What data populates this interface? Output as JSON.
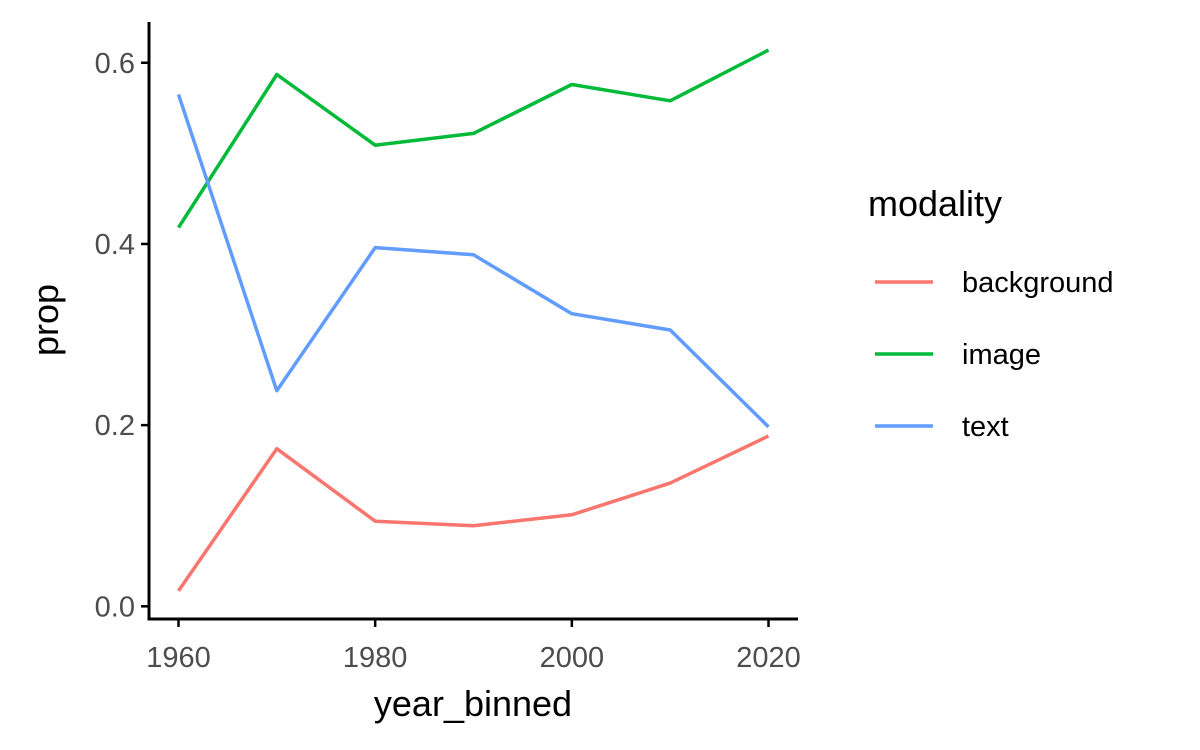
{
  "chart_data": {
    "type": "line",
    "xlabel": "year_binned",
    "ylabel": "prop",
    "x": [
      1960,
      1970,
      1980,
      1990,
      2000,
      2010,
      2020
    ],
    "x_ticks": [
      1960,
      1980,
      2000,
      2020
    ],
    "x_tick_labels": [
      "1960",
      "1980",
      "2000",
      "2020"
    ],
    "y_ticks": [
      0.0,
      0.2,
      0.4,
      0.6
    ],
    "y_tick_labels": [
      "0.0",
      "0.2",
      "0.4",
      "0.6"
    ],
    "xlim": [
      1957,
      2023
    ],
    "ylim": [
      -0.014,
      0.645
    ],
    "grid": false,
    "legend": {
      "title": "modality",
      "placement": "right"
    },
    "series": [
      {
        "name": "background",
        "color": "#F8766D",
        "values": [
          0.017,
          0.174,
          0.094,
          0.089,
          0.101,
          0.136,
          0.188
        ]
      },
      {
        "name": "image",
        "color": "#00BA38",
        "values": [
          0.418,
          0.587,
          0.509,
          0.522,
          0.576,
          0.558,
          0.614
        ]
      },
      {
        "name": "text",
        "color": "#619CFF",
        "values": [
          0.565,
          0.238,
          0.396,
          0.388,
          0.323,
          0.305,
          0.198
        ]
      }
    ]
  }
}
